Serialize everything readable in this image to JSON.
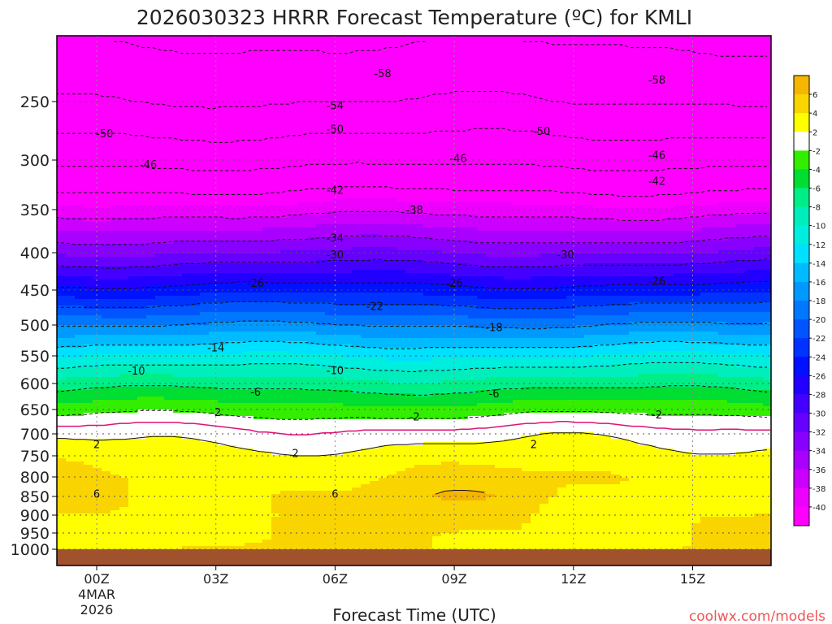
{
  "chart_data": {
    "type": "time-height contour",
    "title": "2026030323 HRRR Forecast Temperature (ºC) for KMLI",
    "xlabel": "Forecast Time (UTC)",
    "ylabel": "",
    "credit": "coolwx.com/models",
    "x_range_hours": [
      -1,
      17
    ],
    "x_ticks": [
      {
        "hour": 0,
        "label": "00Z"
      },
      {
        "hour": 3,
        "label": "03Z"
      },
      {
        "hour": 6,
        "label": "06Z"
      },
      {
        "hour": 9,
        "label": "09Z"
      },
      {
        "hour": 12,
        "label": "12Z"
      },
      {
        "hour": 15,
        "label": "15Z"
      }
    ],
    "date_label": [
      "4MAR",
      "2026"
    ],
    "y_range_hpa": [
      1030,
      200
    ],
    "y_ticks": [
      250,
      300,
      350,
      400,
      450,
      500,
      550,
      600,
      650,
      700,
      750,
      800,
      850,
      900,
      950,
      1000
    ],
    "ground_hpa": 1000,
    "levels": [
      1000,
      950,
      900,
      850,
      800,
      750,
      700,
      650,
      600,
      550,
      500,
      450,
      400,
      350,
      300,
      250,
      200
    ],
    "temp_profile_c": [
      4,
      4,
      4,
      4.5,
      4,
      3,
      1,
      -3,
      -7,
      -12,
      -18,
      -25,
      -32,
      -39,
      -47,
      -54,
      -59
    ],
    "temp_variation_c": [
      0.5,
      1.5,
      1.5,
      2.0,
      1.0,
      1.0,
      1.2,
      0.8,
      0.8,
      0.8,
      0.8,
      0.8,
      0.8,
      0.8,
      0.8,
      0.8,
      0.8
    ],
    "contour_labels": [
      {
        "hour": 7.2,
        "hpa": 228,
        "text": "-58"
      },
      {
        "hour": 14.1,
        "hpa": 233,
        "text": "-58"
      },
      {
        "hour": 6.0,
        "hpa": 253,
        "text": "-54"
      },
      {
        "hour": 0.2,
        "hpa": 276,
        "text": "-50"
      },
      {
        "hour": 6.0,
        "hpa": 272,
        "text": "-50"
      },
      {
        "hour": 11.2,
        "hpa": 274,
        "text": "-50"
      },
      {
        "hour": 1.3,
        "hpa": 304,
        "text": "-46"
      },
      {
        "hour": 9.1,
        "hpa": 298,
        "text": "-46"
      },
      {
        "hour": 14.1,
        "hpa": 295,
        "text": "-46"
      },
      {
        "hour": 6.0,
        "hpa": 329,
        "text": "-42"
      },
      {
        "hour": 14.1,
        "hpa": 320,
        "text": "-42"
      },
      {
        "hour": 8.0,
        "hpa": 350,
        "text": "-38"
      },
      {
        "hour": 6.0,
        "hpa": 382,
        "text": "-34"
      },
      {
        "hour": 6.0,
        "hpa": 402,
        "text": "-30"
      },
      {
        "hour": 11.8,
        "hpa": 402,
        "text": "-30"
      },
      {
        "hour": 4.0,
        "hpa": 440,
        "text": "-26"
      },
      {
        "hour": 9.0,
        "hpa": 440,
        "text": "-26"
      },
      {
        "hour": 14.1,
        "hpa": 437,
        "text": "-26"
      },
      {
        "hour": 7.0,
        "hpa": 472,
        "text": "-22"
      },
      {
        "hour": 10.0,
        "hpa": 503,
        "text": "-18"
      },
      {
        "hour": 3.0,
        "hpa": 536,
        "text": "-14"
      },
      {
        "hour": 1.0,
        "hpa": 576,
        "text": "-10"
      },
      {
        "hour": 6.0,
        "hpa": 575,
        "text": "-10"
      },
      {
        "hour": 4.0,
        "hpa": 615,
        "text": "-6"
      },
      {
        "hour": 10.0,
        "hpa": 618,
        "text": "-6"
      },
      {
        "hour": 3.0,
        "hpa": 655,
        "text": "-2"
      },
      {
        "hour": 8.0,
        "hpa": 664,
        "text": "-2"
      },
      {
        "hour": 14.1,
        "hpa": 660,
        "text": "-2"
      },
      {
        "hour": 0.0,
        "hpa": 723,
        "text": "2"
      },
      {
        "hour": 5.0,
        "hpa": 743,
        "text": "2"
      },
      {
        "hour": 11.0,
        "hpa": 723,
        "text": "2"
      },
      {
        "hour": 0.0,
        "hpa": 843,
        "text": "6"
      },
      {
        "hour": 6.0,
        "hpa": 843,
        "text": "6"
      }
    ],
    "colorbar": {
      "levels": [
        6,
        4,
        2,
        -2,
        -4,
        -6,
        -8,
        -10,
        -12,
        -14,
        -16,
        -18,
        -20,
        -22,
        -24,
        -26,
        -28,
        -30,
        -32,
        -34,
        -36,
        -38,
        -40
      ],
      "colors": [
        "#f6b600",
        "#f9d400",
        "#ffff00",
        "#ffffff",
        "#33ee00",
        "#00dd33",
        "#00ee88",
        "#00eebb",
        "#00eedd",
        "#00e0ff",
        "#00bbff",
        "#0099ff",
        "#0077ff",
        "#0055ff",
        "#0033ff",
        "#0011ff",
        "#2200ff",
        "#4400ff",
        "#6600ff",
        "#8800ff",
        "#aa00ff",
        "#cc00ff",
        "#ee00ff",
        "#ff00ff"
      ]
    },
    "ground_color": "#a0522d",
    "freezing_line_color": "#dd1177"
  }
}
